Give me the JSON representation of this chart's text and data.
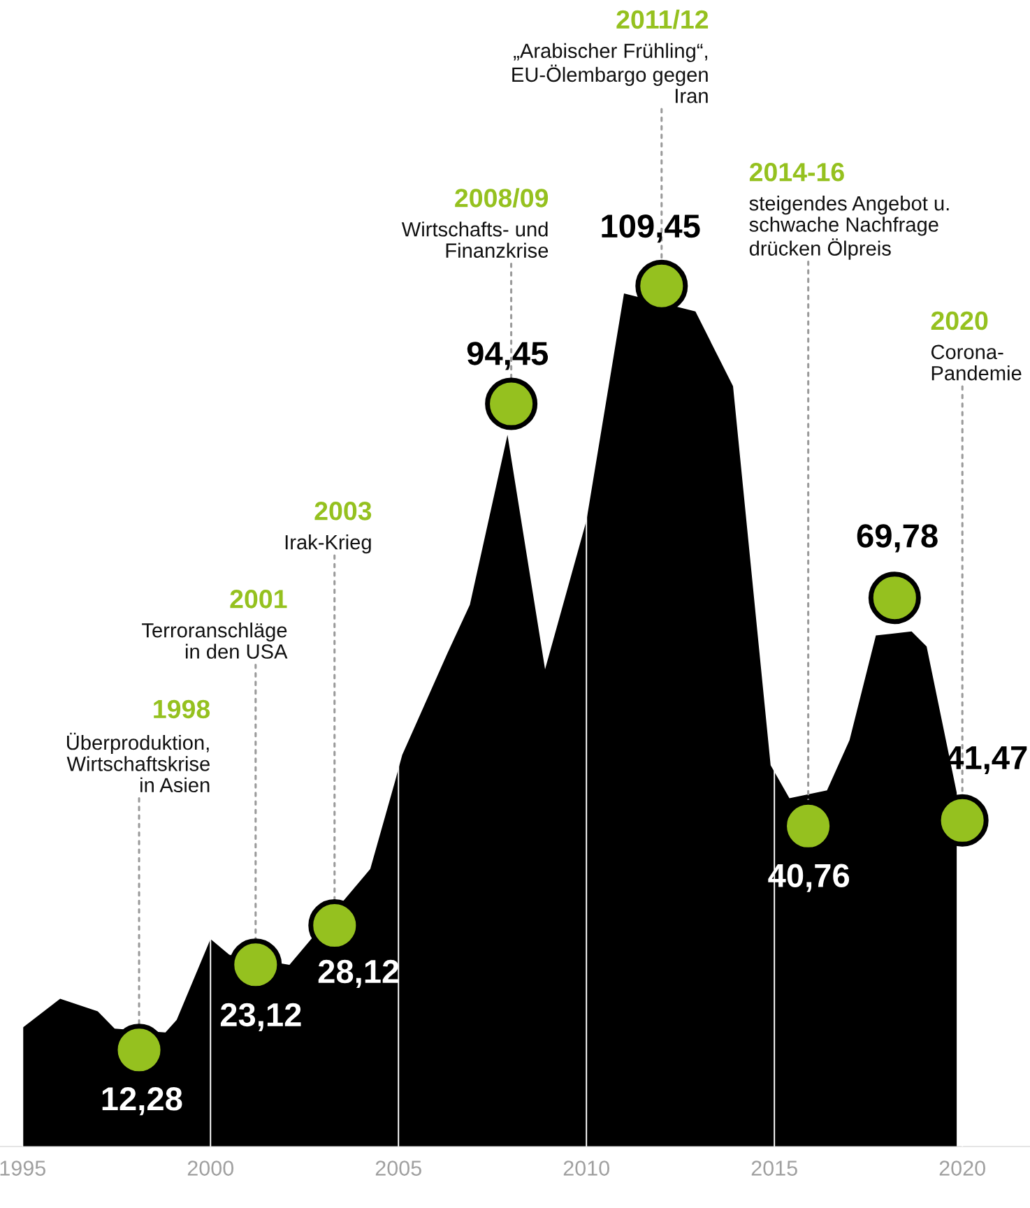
{
  "chart_data": {
    "type": "area",
    "tick_labels": "x",
    "grid": "x",
    "xlim": [
      1994.4,
      2021.8
    ],
    "ylim": [
      0,
      145.8
    ],
    "xticks": [
      1995,
      2000,
      2005,
      2010,
      2015,
      2020
    ],
    "series": [
      {
        "color": "#000000",
        "x": [
          1995.0,
          1996.0,
          1997.0,
          1997.45,
          1998.8,
          1999.1,
          2000.0,
          2000.5,
          2002.1,
          2004.25,
          2004.9,
          2005.1,
          2006.3,
          2006.9,
          2007.9,
          2008.9,
          2010.0,
          2011.0,
          2012.9,
          2013.9,
          2014.9,
          2015.4,
          2016.4,
          2017.0,
          2017.7,
          2018.65,
          2019.05,
          2019.85
        ],
        "values": [
          15.1,
          18.8,
          17.2,
          15.0,
          14.5,
          16.1,
          26.4,
          24.4,
          23.1,
          35.3,
          46.3,
          49.8,
          62.7,
          68.9,
          90.5,
          60.7,
          79.6,
          108.5,
          106.2,
          96.7,
          48.5,
          44.3,
          45.3,
          51.7,
          65.0,
          65.5,
          63.6,
          45.0
        ]
      },
      {
        "type": "scatter",
        "color": "#95c11f",
        "marker": "circle",
        "x": [
          1998.1,
          2001.2,
          2003.3,
          2008.0,
          2012.0,
          2015.9,
          2018.2,
          2020.0
        ],
        "values": [
          12.28,
          23.12,
          28.12,
          94.45,
          109.45,
          40.76,
          69.78,
          41.47
        ],
        "value_labels": [
          "12,28",
          "23,12",
          "28,12",
          "94,45",
          "109,45",
          "40,76",
          "69,78",
          "41,47"
        ]
      }
    ],
    "annotations": [
      "1998",
      {
        "text": "Überproduktion,\nWirtschaftskrise\nin Asien",
        "x": 1998.1,
        "y": 12.28
      },
      "2001",
      {
        "text": "Terroranschläge\nin den USA",
        "x": 2001.2,
        "y": 23.12
      },
      "2003",
      {
        "text": "Irak-Krieg",
        "x": 2003.3,
        "y": 28.12
      },
      "2008/09",
      {
        "text": "Wirtschafts- und\nFinanzkrise",
        "x": 2008.0,
        "y": 94.45
      },
      "2011/12",
      {
        "text": "„Arabischer Frühling“,\nEU-Ölembargo gegen\nIran",
        "x": 2012.0,
        "y": 109.45
      },
      "2014-16",
      {
        "text": "steigendes Angebot u.\nschwache Nachfrage\ndrücken Ölpreis",
        "x": 2015.9,
        "y": 40.76
      },
      "2020",
      {
        "text": "Corona-\nPandemie",
        "x": 2020.0,
        "y": 41.47
      }
    ]
  }
}
